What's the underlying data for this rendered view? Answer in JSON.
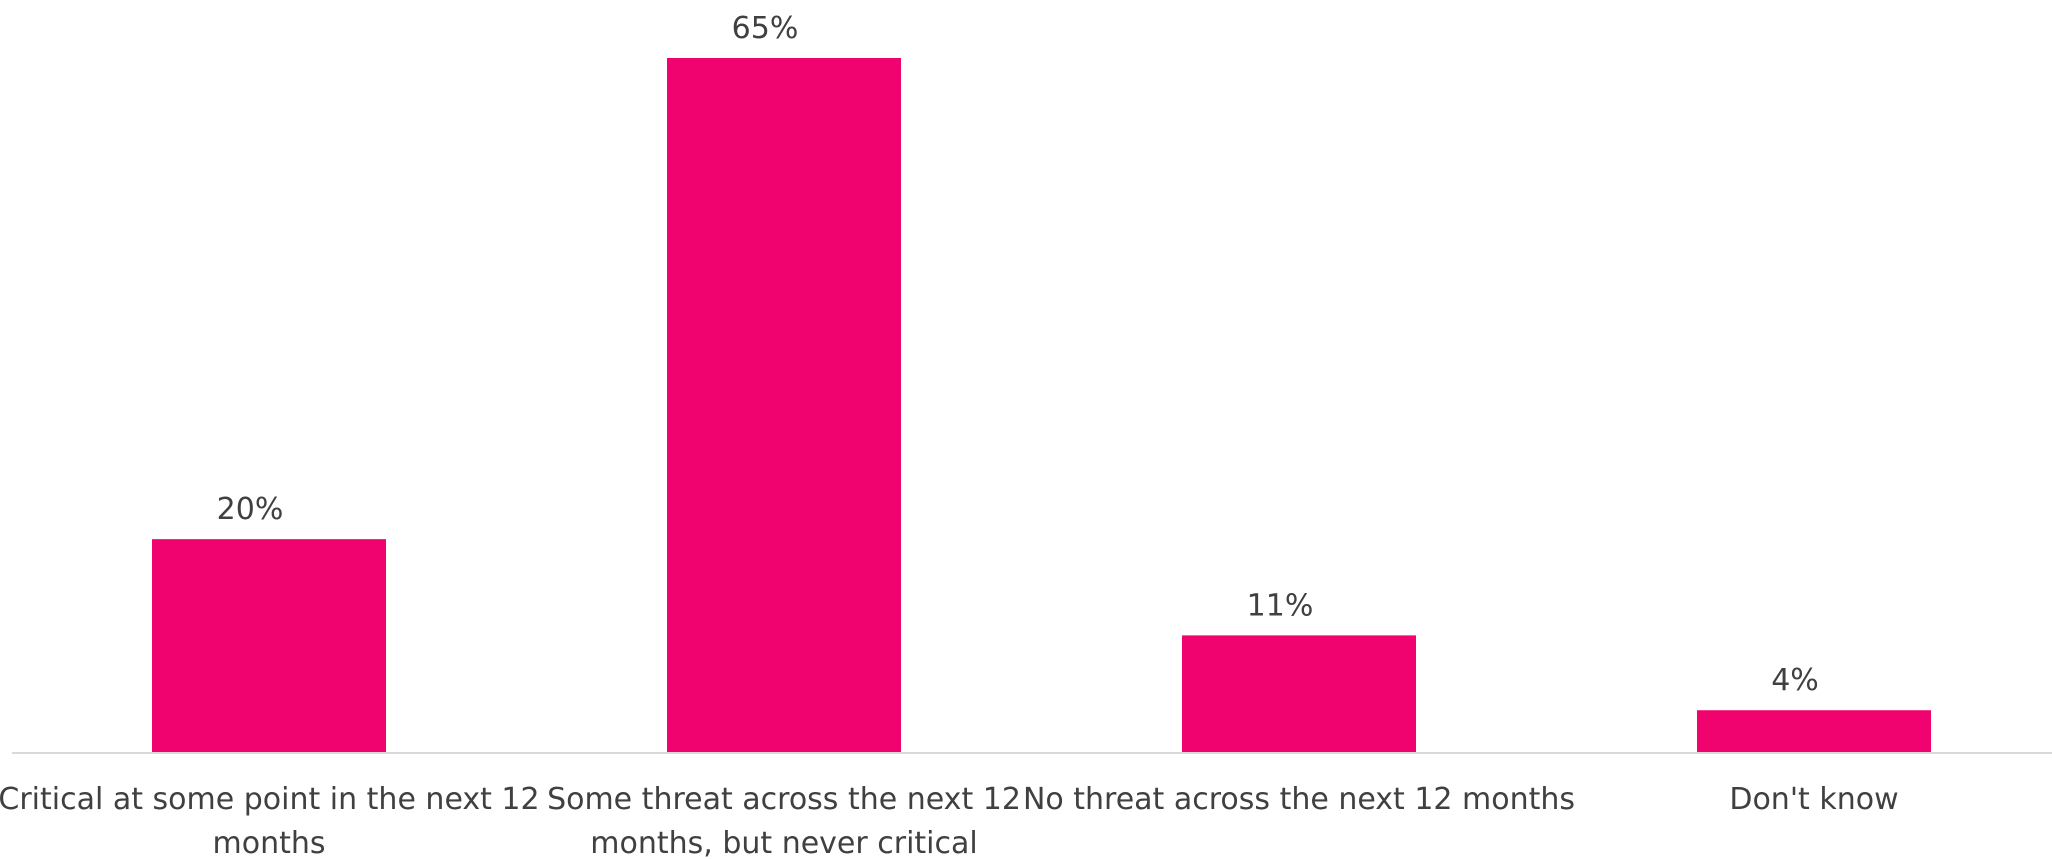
{
  "chart_data": {
    "type": "bar",
    "categories": [
      [
        "Critical at some point in the next 12",
        "months"
      ],
      [
        "Some threat across the next 12",
        "months, but never critical"
      ],
      [
        "No threat across the next 12 months"
      ],
      [
        "Don't know"
      ]
    ],
    "values": [
      20,
      65,
      11,
      4
    ],
    "value_labels": [
      "20%",
      "65%",
      "11%",
      "4%"
    ],
    "ylim": [
      0,
      65
    ],
    "grid": false,
    "bar_color": "#F0036E",
    "axis_color": "#D9D9D9",
    "text_color": "#404040"
  }
}
